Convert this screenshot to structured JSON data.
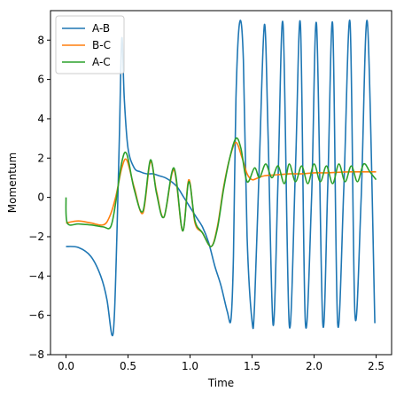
{
  "chart_data": {
    "type": "line",
    "title": "",
    "xlabel": "Time",
    "ylabel": "Momentum",
    "xlim": [
      -0.125,
      2.625
    ],
    "ylim": [
      -8.0,
      9.5
    ],
    "xticks": [
      0.0,
      0.5,
      1.0,
      1.5,
      2.0,
      2.5
    ],
    "xtick_labels": [
      "0.0",
      "0.5",
      "1.0",
      "1.5",
      "2.0",
      "2.5"
    ],
    "yticks": [
      -8,
      -6,
      -4,
      -2,
      0,
      2,
      4,
      6,
      8
    ],
    "ytick_labels": [
      "−8",
      "−6",
      "−4",
      "−2",
      "0",
      "2",
      "4",
      "6",
      "8"
    ],
    "grid": false,
    "legend_position": "top-left",
    "series": [
      {
        "name": "A-B",
        "color": "#1f77b4",
        "x": [
          0.0,
          0.1,
          0.2,
          0.28,
          0.33,
          0.37,
          0.39,
          0.41,
          0.43,
          0.45,
          0.47,
          0.5,
          0.55,
          0.6,
          0.65,
          0.7,
          0.75,
          0.8,
          0.85,
          0.9,
          0.95,
          1.0,
          1.05,
          1.1,
          1.15,
          1.2,
          1.25,
          1.3,
          1.33,
          1.35,
          1.37,
          1.4,
          1.43,
          1.46,
          1.5,
          1.52,
          1.56,
          1.6,
          1.63,
          1.67,
          1.71,
          1.75,
          1.8,
          1.85,
          1.89,
          1.93,
          1.98,
          2.02,
          2.07,
          2.11,
          2.15,
          2.19,
          2.24,
          2.29,
          2.33,
          2.38,
          2.43,
          2.49
        ],
        "y": [
          -2.5,
          -2.55,
          -3.0,
          -4.0,
          -5.2,
          -7.0,
          -6.0,
          -2.0,
          3.0,
          8.1,
          5.0,
          2.5,
          1.5,
          1.3,
          1.2,
          1.2,
          1.1,
          1.0,
          0.8,
          0.5,
          0.0,
          -0.5,
          -1.0,
          -1.5,
          -2.3,
          -3.5,
          -4.5,
          -5.8,
          -6.2,
          -3.0,
          5.0,
          8.9,
          7.0,
          -2.0,
          -6.3,
          -5.5,
          2.0,
          8.8,
          3.0,
          -6.5,
          1.0,
          8.8,
          -6.5,
          1.5,
          8.8,
          -6.4,
          0.0,
          8.8,
          -6.4,
          0.5,
          8.8,
          -6.4,
          0.5,
          8.9,
          -6.0,
          0.0,
          8.9,
          -6.4
        ]
      },
      {
        "name": "B-C",
        "color": "#ff7f0e",
        "x": [
          0.0,
          0.1,
          0.2,
          0.3,
          0.35,
          0.4,
          0.45,
          0.49,
          0.55,
          0.62,
          0.68,
          0.73,
          0.79,
          0.87,
          0.94,
          0.99,
          1.04,
          1.1,
          1.17,
          1.22,
          1.27,
          1.32,
          1.37,
          1.42,
          1.46,
          1.5,
          1.55,
          1.6,
          1.7,
          1.8,
          1.9,
          2.0,
          2.1,
          2.2,
          2.3,
          2.4,
          2.5
        ],
        "y": [
          -1.3,
          -1.2,
          -1.3,
          -1.4,
          -1.0,
          0.0,
          1.5,
          1.9,
          0.5,
          -0.8,
          1.8,
          0.3,
          -1.0,
          1.4,
          -1.7,
          0.9,
          -1.3,
          -1.8,
          -2.5,
          -1.5,
          0.5,
          2.0,
          2.8,
          2.0,
          1.2,
          0.9,
          1.0,
          1.1,
          1.15,
          1.2,
          1.2,
          1.25,
          1.25,
          1.28,
          1.3,
          1.3,
          1.3
        ]
      },
      {
        "name": "A-C",
        "color": "#2ca02c",
        "x": [
          0.0,
          0.01,
          0.1,
          0.2,
          0.3,
          0.36,
          0.4,
          0.45,
          0.49,
          0.55,
          0.62,
          0.68,
          0.73,
          0.79,
          0.87,
          0.94,
          0.99,
          1.04,
          1.1,
          1.17,
          1.22,
          1.27,
          1.32,
          1.37,
          1.41,
          1.46,
          1.52,
          1.56,
          1.61,
          1.66,
          1.71,
          1.76,
          1.8,
          1.85,
          1.9,
          1.95,
          2.0,
          2.05,
          2.1,
          2.15,
          2.2,
          2.25,
          2.3,
          2.35,
          2.4,
          2.45,
          2.5
        ],
        "y": [
          0.0,
          -1.3,
          -1.35,
          -1.4,
          -1.5,
          -1.5,
          -0.3,
          1.8,
          2.2,
          0.4,
          -0.7,
          1.9,
          0.2,
          -1.0,
          1.5,
          -1.7,
          0.8,
          -1.2,
          -1.8,
          -2.5,
          -1.6,
          0.4,
          2.0,
          3.0,
          2.5,
          0.8,
          1.5,
          1.0,
          1.7,
          1.0,
          1.6,
          0.7,
          1.7,
          0.8,
          1.6,
          0.7,
          1.7,
          0.8,
          1.6,
          0.7,
          1.7,
          0.8,
          1.6,
          0.8,
          1.7,
          1.3,
          0.9
        ]
      }
    ]
  }
}
